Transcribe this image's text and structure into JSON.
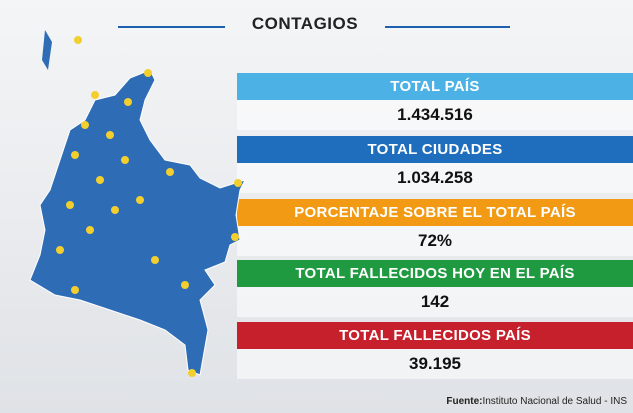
{
  "header": {
    "title": "CONTAGIOS"
  },
  "panels": [
    {
      "label": "TOTAL PAÍS",
      "value": "1.434.516"
    },
    {
      "label": "TOTAL CIUDADES",
      "value": "1.034.258"
    },
    {
      "label": "PORCENTAJE SOBRE EL TOTAL PAÍS",
      "value": "72%"
    },
    {
      "label": "TOTAL FALLECIDOS HOY EN EL PAÍS",
      "value": "142"
    },
    {
      "label": "TOTAL FALLECIDOS PAÍS",
      "value": "39.195"
    }
  ],
  "source": {
    "prefix": "Fuente:",
    "text": "Instituto Nacional de Salud - INS"
  }
}
